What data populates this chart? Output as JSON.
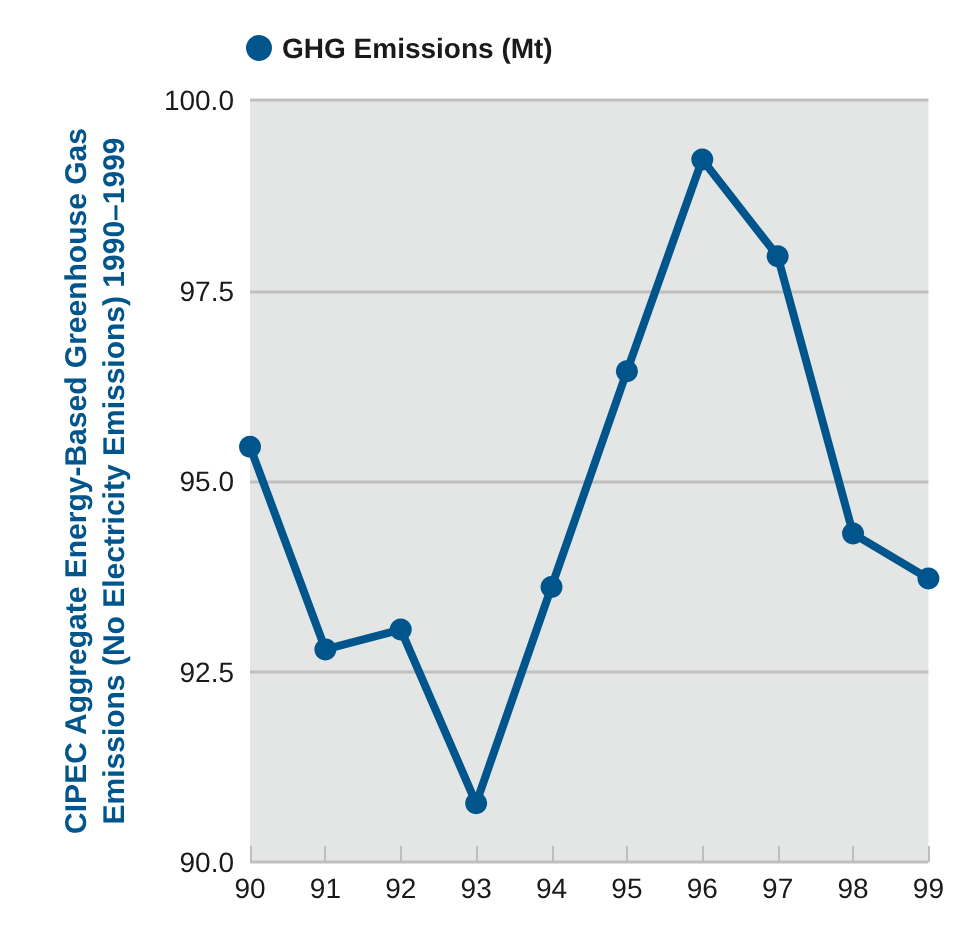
{
  "chart_data": {
    "type": "line",
    "ylabel": "CIPEC Aggregate Energy-Based Greenhouse Gas\nEmissions (No Electricity Emissions) 1990–1999",
    "categories": [
      "90",
      "91",
      "92",
      "93",
      "94",
      "95",
      "96",
      "97",
      "98",
      "99"
    ],
    "series": [
      {
        "name": "GHG Emissions (Mt)",
        "color": "#00558c",
        "values": [
          95.45,
          92.79,
          93.05,
          90.77,
          93.61,
          96.44,
          99.22,
          97.95,
          94.31,
          93.72
        ]
      }
    ],
    "ylim": [
      90,
      100
    ],
    "yticks": [
      {
        "value": 90,
        "label": "90.0"
      },
      {
        "value": 92.5,
        "label": "92.5"
      },
      {
        "value": 95,
        "label": "95.0"
      },
      {
        "value": 97.5,
        "label": "97.5"
      },
      {
        "value": 100,
        "label": "100.0"
      }
    ],
    "grid": "y",
    "legend": "top left",
    "marker": "circle",
    "line_style": "solid"
  }
}
